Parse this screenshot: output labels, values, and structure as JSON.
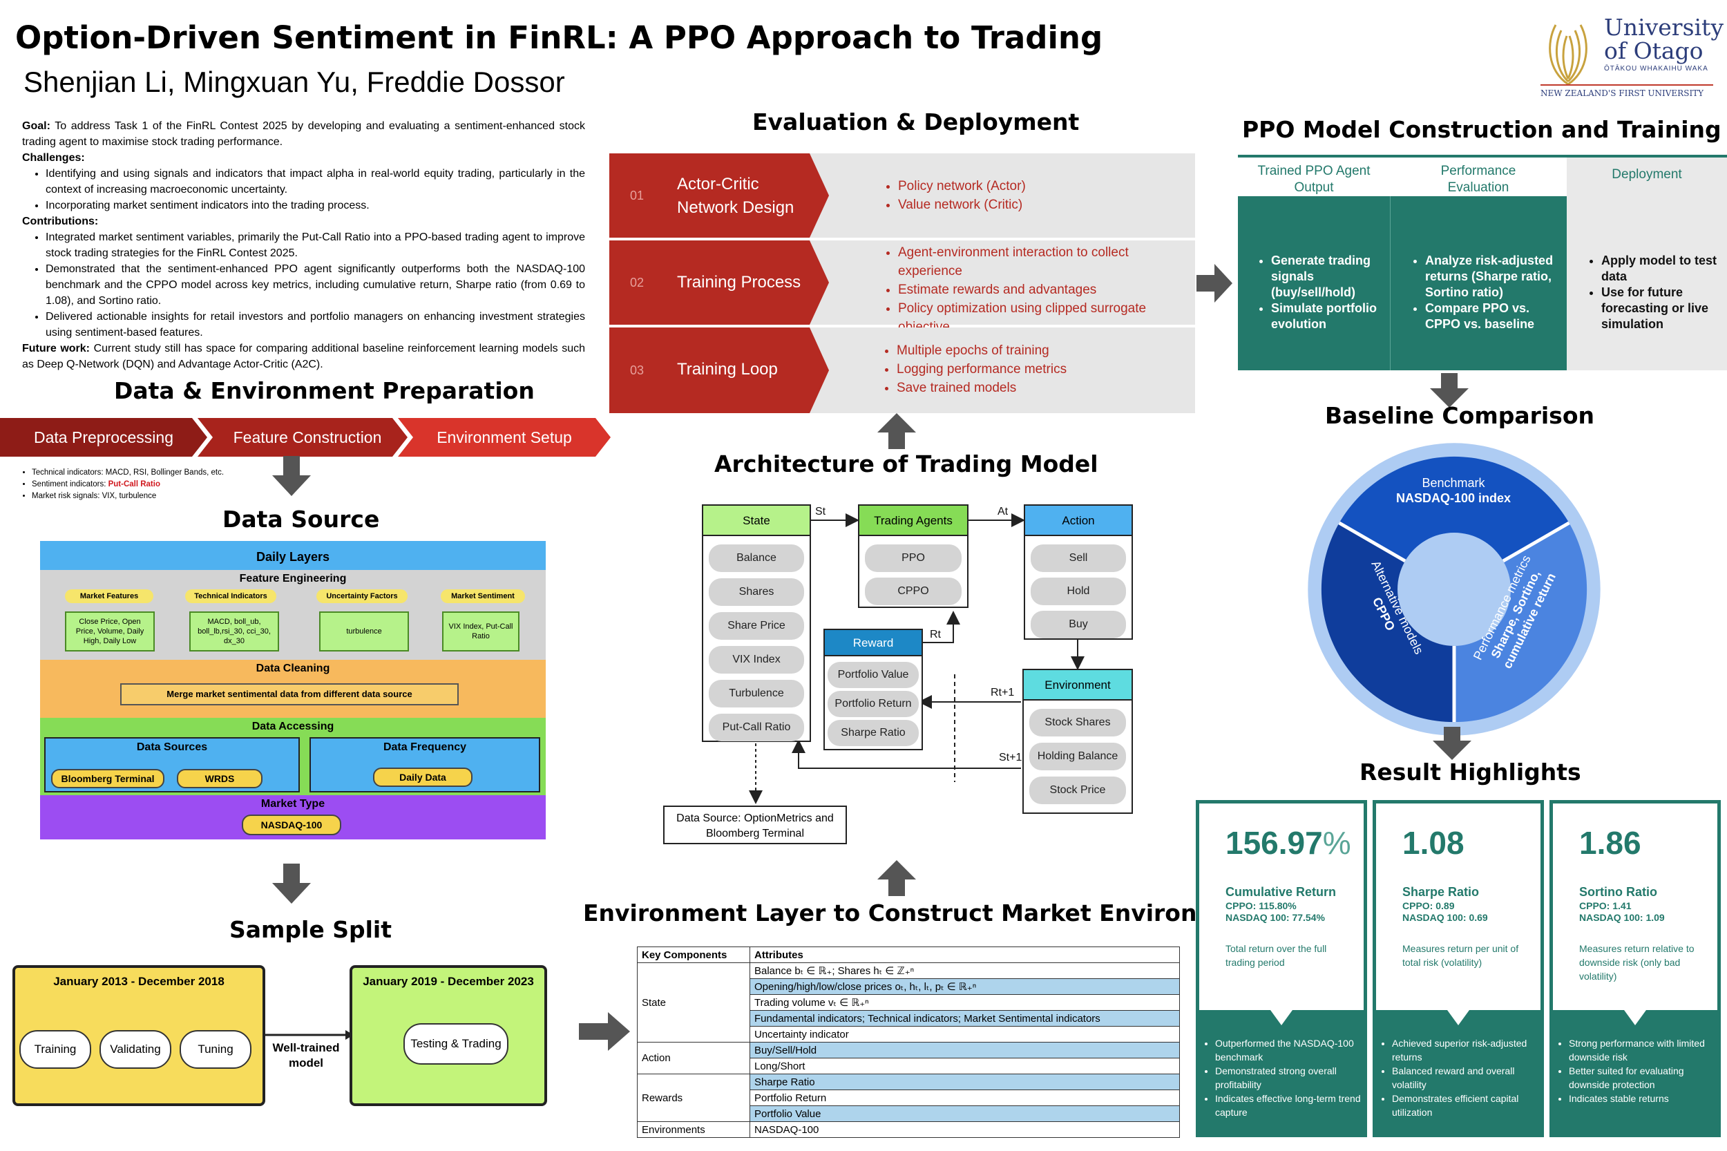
{
  "header": {
    "title": "Option-Driven Sentiment in FinRL: A PPO Approach to Trading",
    "authors": "Shenjian Li, Mingxuan Yu, Freddie Dossor",
    "logo_line1": "University",
    "logo_line2": "of Otago",
    "logo_maori": "ŌTĀKOU WHAKAIHU WAKA",
    "logo_tagline": "NEW ZEALAND'S FIRST UNIVERSITY"
  },
  "intro": {
    "goal_label": "Goal:",
    "goal_text": "To address Task 1 of the FinRL Contest 2025 by developing and evaluating a sentiment-enhanced stock trading agent to maximise stock trading performance.",
    "challenges_label": "Challenges:",
    "challenges": [
      "Identifying and using signals and indicators that impact alpha in real-world equity trading, particularly in the context of increasing macroeconomic uncertainty.",
      "Incorporating market sentiment indicators into the trading process."
    ],
    "contributions_label": "Contributions:",
    "contributions": [
      "Integrated market sentiment variables, primarily the Put-Call Ratio into a PPO-based trading agent to improve stock trading strategies for the FinRL Contest 2025.",
      "Demonstrated that the sentiment-enhanced PPO agent significantly outperforms both the NASDAQ-100 benchmark and the CPPO model across key metrics, including cumulative return, Sharpe ratio (from 0.69 to 1.08), and Sortino ratio.",
      "Delivered actionable insights for retail investors and portfolio managers on enhancing investment strategies using sentiment-based features."
    ],
    "future_label": "Future work:",
    "future_text": "Current study still has space for comparing additional baseline reinforcement learning models such as Deep Q-Network (DQN) and Advantage Actor-Critic (A2C)."
  },
  "data_env": {
    "title": "Data & Environment Preparation",
    "steps": [
      "Data Preprocessing",
      "Feature Construction",
      "Environment Setup"
    ],
    "bullets": [
      {
        "text": "Technical indicators: MACD, RSI, Bollinger Bands, etc.",
        "highlight": ""
      },
      {
        "text": "Sentiment indicators: ",
        "highlight": "Put-Call Ratio"
      },
      {
        "text": "Market risk signals: VIX, turbulence",
        "highlight": ""
      }
    ]
  },
  "data_source": {
    "title": "Data Source",
    "daily_layers": "Daily Layers",
    "feature_engineering": "Feature Engineering",
    "tags": [
      "Market Features",
      "Technical Indicators",
      "Uncertainty Factors",
      "Market Sentiment"
    ],
    "boxes": [
      "Close Price, Open Price, Volume, Daily High, Daily Low",
      "MACD, boll_ub, boll_lb,rsi_30, cci_30, dx_30",
      "turbulence",
      "VIX Index, Put-Call Ratio"
    ],
    "data_cleaning": "Data Cleaning",
    "merge": "Merge market sentimental data from different data source",
    "data_accessing": "Data Accessing",
    "sources_label": "Data Sources",
    "sources": [
      "Bloomberg Terminal",
      "WRDS"
    ],
    "frequency_label": "Data Frequency",
    "frequency": "Daily Data",
    "market_type_label": "Market Type",
    "market_type": "NASDAQ-100"
  },
  "sample_split": {
    "title": "Sample Split",
    "period1": "January 2013 - December 2018",
    "period2": "January 2019 - December 2023",
    "stages": [
      "Training",
      "Validating",
      "Tuning"
    ],
    "link": "Well-trained model",
    "final": "Testing & Trading"
  },
  "eval_deploy": {
    "title": "Evaluation & Deployment",
    "rows": [
      {
        "num": "01",
        "label": "Actor-Critic Network Design",
        "items": [
          "Policy network (Actor)",
          "Value network (Critic)"
        ]
      },
      {
        "num": "02",
        "label": "Training Process",
        "items": [
          "Agent-environment interaction to collect experience",
          "Estimate rewards and advantages",
          "Policy optimization using clipped surrogate objective"
        ]
      },
      {
        "num": "03",
        "label": "Training Loop",
        "items": [
          "Multiple epochs of training",
          "Logging performance metrics",
          "Save trained models"
        ]
      }
    ]
  },
  "architecture": {
    "title": "Architecture of Trading Model",
    "state": {
      "header": "State",
      "items": [
        "Balance",
        "Shares",
        "Share Price",
        "VIX Index",
        "Turbulence",
        "Put-Call Ratio"
      ]
    },
    "agents": {
      "header": "Trading Agents",
      "items": [
        "PPO",
        "CPPO"
      ]
    },
    "action": {
      "header": "Action",
      "items": [
        "Sell",
        "Hold",
        "Buy"
      ]
    },
    "reward": {
      "header": "Reward",
      "items": [
        "Portfolio Value",
        "Portfolio Return",
        "Sharpe Ratio"
      ]
    },
    "environment": {
      "header": "Environment",
      "items": [
        "Stock Shares",
        "Holding Balance",
        "Stock Price"
      ]
    },
    "labels": {
      "st": "St",
      "at": "At",
      "rt": "Rt",
      "rt1": "Rt+1",
      "st1": "St+1"
    },
    "data_source": "Data Source: OptionMetrics and Bloomberg Terminal"
  },
  "env_layer": {
    "title": "Environment Layer to Construct Market Environments",
    "col1": "Key Components",
    "col2": "Attributes",
    "rows": [
      {
        "group": "State",
        "span": 6,
        "attrs": [
          {
            "text": "Balance bₜ ∈ ℝ₊; Shares hₜ ∈ ℤ₊ⁿ",
            "blue": false
          },
          {
            "text": "Opening/high/low/close prices oₜ, hₜ, lₜ, pₜ ∈ ℝ₊ⁿ",
            "blue": true
          },
          {
            "text": "Trading volume vₜ ∈ ℝ₊ⁿ",
            "blue": false
          },
          {
            "text": "Fundamental indicators; Technical indicators; Market Sentimental indicators",
            "blue": true
          },
          {
            "text": "Uncertainty indicator",
            "blue": false
          }
        ]
      },
      {
        "group": "Action",
        "attrs": [
          {
            "text": "Buy/Sell/Hold",
            "blue": true
          },
          {
            "text": "Long/Short",
            "blue": false
          }
        ]
      },
      {
        "group": "Rewards",
        "attrs": [
          {
            "text": "Sharpe Ratio",
            "blue": true
          },
          {
            "text": "Portfolio Return",
            "blue": false
          },
          {
            "text": "Portfolio Value",
            "blue": true
          }
        ]
      },
      {
        "group": "Environments",
        "attrs": [
          {
            "text": "NASDAQ-100",
            "blue": false
          }
        ]
      }
    ]
  },
  "ppo": {
    "title": "PPO Model Construction and Training",
    "cols": [
      {
        "header": "Trained PPO Agent Output",
        "items": [
          "Generate trading signals (buy/sell/hold)",
          "Simulate portfolio evolution"
        ]
      },
      {
        "header": "Performance Evaluation",
        "items": [
          "Analyze risk-adjusted returns (Sharpe ratio, Sortino ratio)",
          "Compare PPO vs. CPPO vs. baseline"
        ]
      },
      {
        "header": "Deployment",
        "items": [
          "Apply model to test data",
          "Use for future forecasting or live simulation"
        ]
      }
    ]
  },
  "baseline": {
    "title": "Baseline Comparison",
    "benchmark": "Benchmark",
    "benchmark_bold": "NASDAQ-100 index",
    "alt": "Alternative models",
    "alt_bold": "CPPO",
    "perf": "Performance metrics",
    "perf_bold1": "Sharpe, Sortino,",
    "perf_bold2": "cumulative return"
  },
  "results": {
    "title": "Result Highlights",
    "cards": [
      {
        "value": "156.97",
        "suffix": "%",
        "label": "Cumulative Return",
        "sub1": "CPPO: 115.80%",
        "sub2": "NASDAQ 100: 77.54%",
        "desc": "Total return over the full trading period",
        "bullets": [
          "Outperformed the NASDAQ-100 benchmark",
          "Demonstrated strong overall profitability",
          "Indicates effective long-term trend capture"
        ]
      },
      {
        "value": "1.08",
        "suffix": "",
        "label": "Sharpe Ratio",
        "sub1": "CPPO: 0.89",
        "sub2": "NASDAQ 100: 0.69",
        "desc": "Measures return per unit of total risk (volatility)",
        "bullets": [
          "Achieved superior risk-adjusted returns",
          "Balanced reward and overall volatility",
          "Demonstrates efficient capital utilization"
        ]
      },
      {
        "value": "1.86",
        "suffix": "",
        "label": "Sortino Ratio",
        "sub1": "CPPO: 1.41",
        "sub2": "NASDAQ 100: 1.09",
        "desc": "Measures return relative to downside risk (only bad volatility)",
        "bullets": [
          "Strong performance with limited downside risk",
          "Better suited for evaluating downside protection",
          "Indicates stable returns"
        ]
      }
    ]
  },
  "colors": {
    "teal": "#23796b",
    "red": "#b52a22",
    "blue_dark": "#1149a8",
    "blue_mid": "#4b84e0"
  }
}
